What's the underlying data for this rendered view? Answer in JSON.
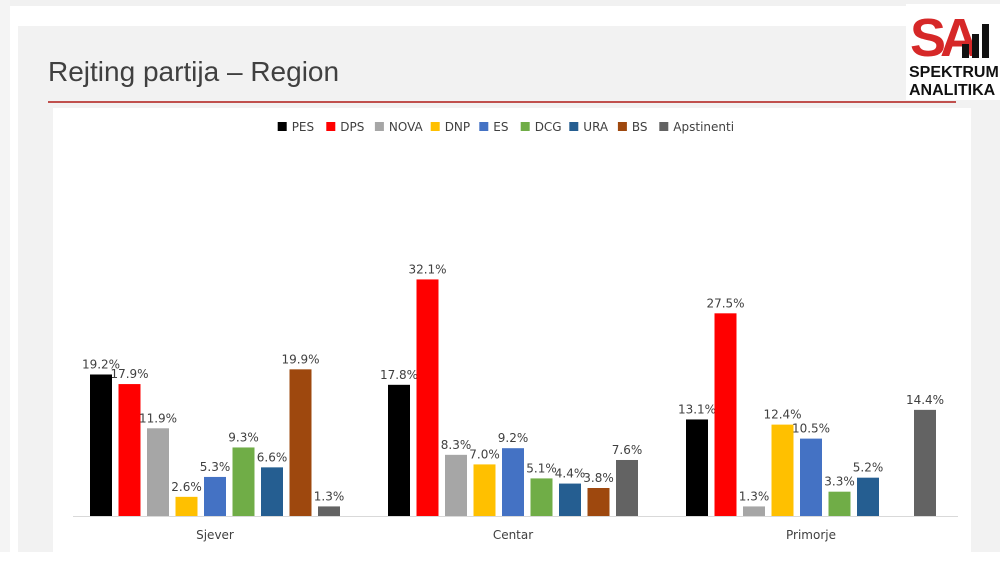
{
  "slide": {
    "title": "Rejting partija – Region"
  },
  "logo": {
    "mark": "SA",
    "line1": "SPEKTRUM",
    "line2": "ANALITIKA",
    "colors": {
      "red": "#d62828",
      "black": "#111111"
    }
  },
  "chart_data": {
    "type": "bar",
    "title": "",
    "xlabel": "",
    "ylabel": "",
    "ylim": [
      0,
      35
    ],
    "grid": false,
    "legend_position": "top",
    "categories": [
      "Sjever",
      "Centar",
      "Primorje"
    ],
    "series": [
      {
        "name": "PES",
        "color": "#000000",
        "values": [
          19.2,
          17.8,
          13.1
        ],
        "labels": [
          "19.2%",
          "17.8%",
          "13.1%"
        ]
      },
      {
        "name": "DPS",
        "color": "#ff0000",
        "values": [
          17.9,
          32.1,
          27.5
        ],
        "labels": [
          "17.9%",
          "32.1%",
          "27.5%"
        ]
      },
      {
        "name": "NOVA",
        "color": "#a6a6a6",
        "values": [
          11.9,
          8.3,
          1.3
        ],
        "labels": [
          "11.9%",
          "8.3%",
          "1.3%"
        ]
      },
      {
        "name": "DNP",
        "color": "#ffc000",
        "values": [
          2.6,
          7.0,
          12.4
        ],
        "labels": [
          "2.6%",
          "7.0%",
          "12.4%"
        ]
      },
      {
        "name": "ES",
        "color": "#4472c4",
        "values": [
          5.3,
          9.2,
          10.5
        ],
        "labels": [
          "5.3%",
          "9.2%",
          "10.5%"
        ]
      },
      {
        "name": "DCG",
        "color": "#70ad47",
        "values": [
          9.3,
          5.1,
          3.3
        ],
        "labels": [
          "9.3%",
          "5.1%",
          "3.3%"
        ]
      },
      {
        "name": "URA",
        "color": "#255e91",
        "values": [
          6.6,
          4.4,
          5.2
        ],
        "labels": [
          "6.6%",
          "4.4%",
          "5.2%"
        ]
      },
      {
        "name": "BS",
        "color": "#9e480e",
        "values": [
          19.9,
          3.8,
          null
        ],
        "labels": [
          "19.9%",
          "3.8%",
          ""
        ]
      },
      {
        "name": "Apstinenti",
        "color": "#636363",
        "values": [
          1.3,
          7.6,
          14.4
        ],
        "labels": [
          "1.3%",
          "7.6%",
          "14.4%"
        ]
      }
    ]
  }
}
